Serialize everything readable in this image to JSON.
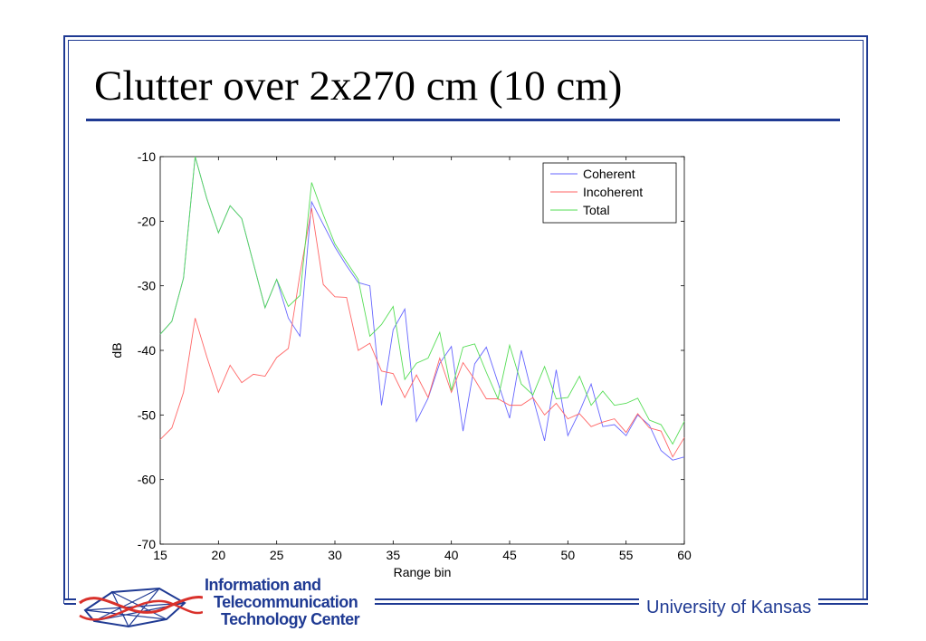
{
  "slide": {
    "title": "Clutter over 2x270 cm (10 cm)"
  },
  "footer": {
    "logo_line1": "Information and",
    "logo_line2": "Telecommunication",
    "logo_line3": "Technology Center",
    "university": "University of Kansas"
  },
  "colors": {
    "frame": "#1f3a93",
    "coherent": "#6666ff",
    "incoherent": "#ff6666",
    "total": "#55dd55"
  },
  "chart_data": {
    "type": "line",
    "title": "",
    "xlabel": "Range bin",
    "ylabel": "dB",
    "xlim": [
      15,
      60
    ],
    "ylim": [
      -70,
      -10
    ],
    "xticks": [
      15,
      20,
      25,
      30,
      35,
      40,
      45,
      50,
      55,
      60
    ],
    "yticks": [
      -10,
      -20,
      -30,
      -40,
      -50,
      -60,
      -70
    ],
    "legend_position": "top-right",
    "grid": false,
    "x": [
      15,
      16,
      17,
      18,
      19,
      20,
      21,
      22,
      23,
      24,
      25,
      26,
      27,
      28,
      29,
      30,
      31,
      32,
      33,
      34,
      35,
      36,
      37,
      38,
      39,
      40,
      41,
      42,
      43,
      44,
      45,
      46,
      47,
      48,
      49,
      50,
      51,
      52,
      53,
      54,
      55,
      56,
      57,
      58,
      59,
      60
    ],
    "series": [
      {
        "name": "Coherent",
        "values": [
          -37.5,
          -35.5,
          -28.8,
          -10,
          -16.5,
          -21.8,
          -17.6,
          -19.6,
          -26.5,
          -33.4,
          -29,
          -35,
          -37.8,
          -17,
          -20.5,
          -24,
          -26.9,
          -29.5,
          -30,
          -48.5,
          -36.8,
          -33.6,
          -51,
          -47.4,
          -42,
          -39.4,
          -52.5,
          -42.1,
          -39.5,
          -45,
          -50.5,
          -40,
          -47.3,
          -54,
          -43,
          -53.2,
          -49.5,
          -45.2,
          -51.8,
          -51.5,
          -53.2,
          -50,
          -51.6,
          -55.5,
          -57,
          -56.5
        ]
      },
      {
        "name": "Incoherent",
        "values": [
          -53.8,
          -52,
          -46.5,
          -35,
          -41,
          -46.5,
          -42.3,
          -45,
          -43.7,
          -44,
          -41.1,
          -39.7,
          -28.2,
          -18,
          -29.8,
          -31.7,
          -31.8,
          -40,
          -38.9,
          -43.2,
          -43.6,
          -47.3,
          -43.8,
          -47.3,
          -41.2,
          -46.5,
          -41.9,
          -44.5,
          -47.5,
          -47.5,
          -48.5,
          -48.5,
          -47.3,
          -50,
          -48.2,
          -50.6,
          -49.8,
          -51.8,
          -51.1,
          -50.6,
          -52.7,
          -49.8,
          -52,
          -52.5,
          -56.5,
          -53.5
        ]
      },
      {
        "name": "Total",
        "values": [
          -37.5,
          -35.5,
          -28.8,
          -10,
          -16.5,
          -21.8,
          -17.6,
          -19.6,
          -26.5,
          -33.4,
          -29,
          -33.2,
          -31.5,
          -14,
          -19,
          -23.5,
          -26.3,
          -29,
          -37.8,
          -36,
          -33.2,
          -44.5,
          -42,
          -41.2,
          -37.2,
          -46.2,
          -39.5,
          -39,
          -43.4,
          -47.5,
          -39.2,
          -45.2,
          -46.9,
          -42.5,
          -47.5,
          -47.3,
          -44,
          -48.5,
          -46.3,
          -48.5,
          -48.2,
          -47.4,
          -50.8,
          -51.5,
          -54.5,
          -51
        ]
      }
    ]
  }
}
